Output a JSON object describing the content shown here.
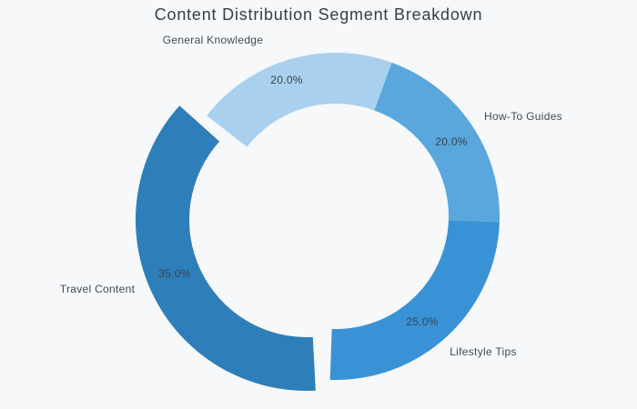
{
  "title": "Content Distribution Segment Breakdown",
  "background_color": "#f7f8f9",
  "text_color": "#3d4b55",
  "chart_data": {
    "type": "pie",
    "subtype": "donut",
    "title": "Content Distribution Segment Breakdown",
    "legend": "none",
    "labels_position": "outside",
    "percent_labels_position": "inside",
    "total": 100,
    "segments": [
      {
        "label": "General Knowledge",
        "value": 20.0,
        "pct_label": "20.0%",
        "color": "#a9d1ef",
        "exploded": false
      },
      {
        "label": "How-To Guides",
        "value": 20.0,
        "pct_label": "20.0%",
        "color": "#59a7dc",
        "exploded": false
      },
      {
        "label": "Lifestyle Tips",
        "value": 25.0,
        "pct_label": "25.0%",
        "color": "#3a92d6",
        "exploded": false
      },
      {
        "label": "Travel Content",
        "value": 35.0,
        "pct_label": "35.0%",
        "color": "#2e7fb9",
        "exploded": true
      }
    ]
  }
}
